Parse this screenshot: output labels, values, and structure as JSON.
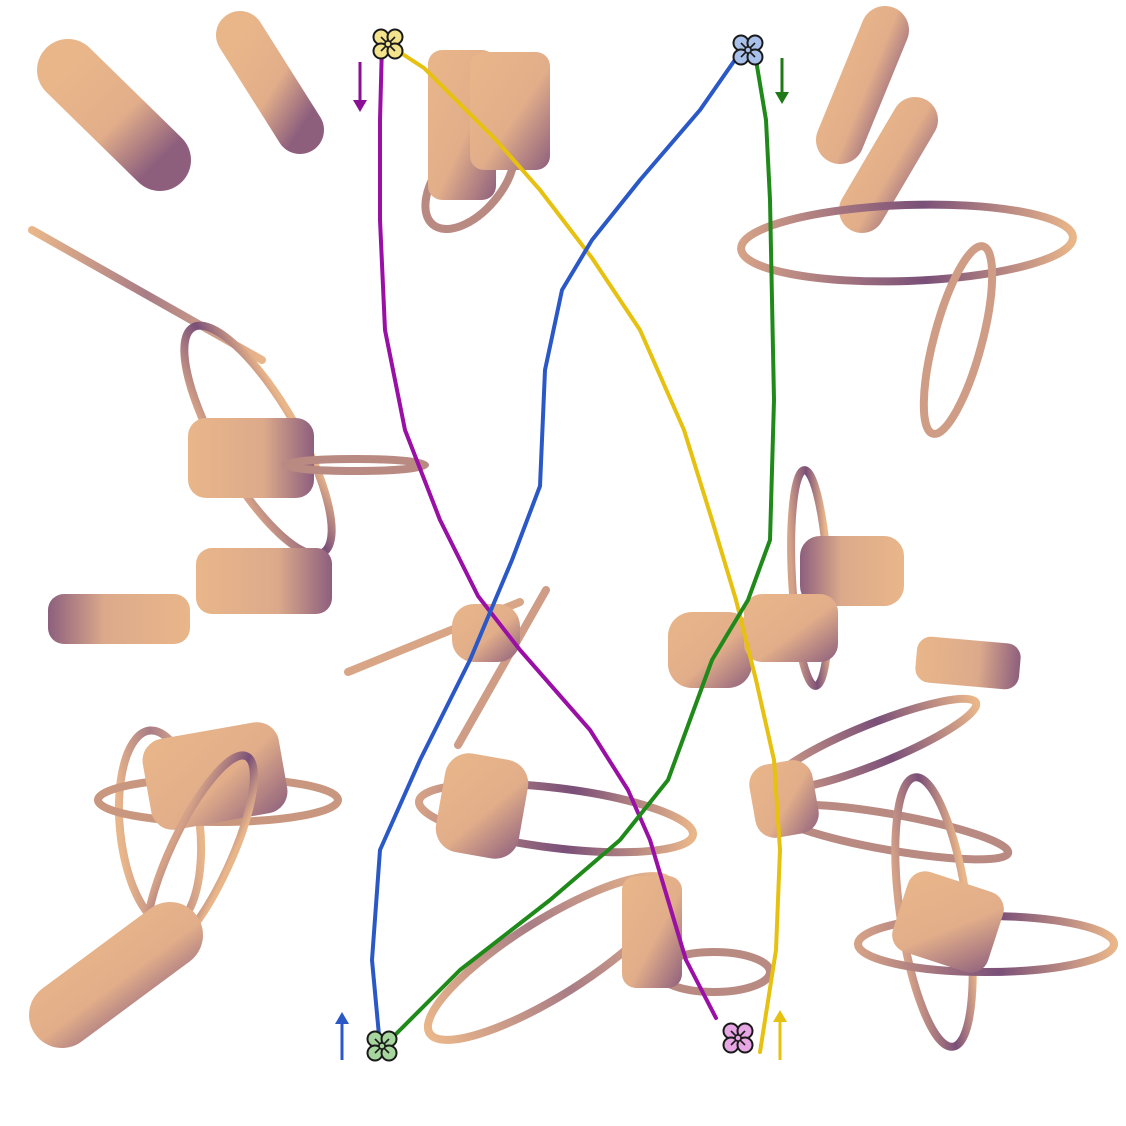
{
  "scene": {
    "background": "#ffffff",
    "obstacle_palette": {
      "light": "#e9b68a",
      "mid": "#b38a86",
      "dark": "#7a4f78"
    },
    "drones": [
      {
        "id": "drone-yellow",
        "color": "#f2e38c",
        "icon": "drone-quadrotor-icon"
      },
      {
        "id": "drone-blue",
        "color": "#a9c0ea",
        "icon": "drone-quadrotor-icon"
      },
      {
        "id": "drone-green",
        "color": "#a6d59e",
        "icon": "drone-quadrotor-icon"
      },
      {
        "id": "drone-pink",
        "color": "#e7a6e4",
        "icon": "drone-quadrotor-icon"
      }
    ],
    "paths": [
      {
        "id": "path-purple",
        "color": "#9a0fa6"
      },
      {
        "id": "path-yellow",
        "color": "#e6c10f"
      },
      {
        "id": "path-blue",
        "color": "#2a58c7"
      },
      {
        "id": "path-green",
        "color": "#1f8a1a"
      }
    ],
    "arrows": [
      {
        "id": "arrow-purple",
        "color": "#8a0f96",
        "direction": "down",
        "icon": "arrow-down-icon"
      },
      {
        "id": "arrow-green",
        "color": "#1f7a16",
        "direction": "down",
        "icon": "arrow-down-icon"
      },
      {
        "id": "arrow-blue",
        "color": "#2a58c7",
        "direction": "up",
        "icon": "arrow-up-icon"
      },
      {
        "id": "arrow-yellow",
        "color": "#e6c10f",
        "direction": "up",
        "icon": "arrow-up-icon"
      }
    ]
  }
}
